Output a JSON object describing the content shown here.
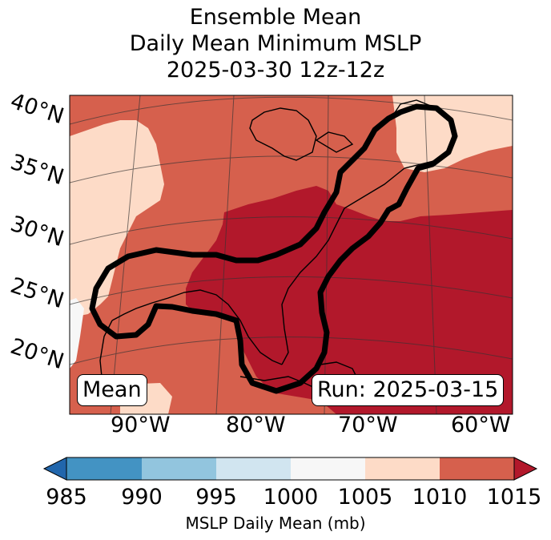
{
  "title": {
    "line1": "Ensemble Mean",
    "line2": "Daily Mean Minimum MSLP",
    "line3": "2025-03-30 12z-12z"
  },
  "map": {
    "lat_labels": [
      "40°N",
      "35°N",
      "30°N",
      "25°N",
      "20°N"
    ],
    "lon_labels": [
      "90°W",
      "80°W",
      "70°W",
      "60°W"
    ],
    "mean_box": "Mean",
    "run_box": "Run: 2025-03-15",
    "field_colors": {
      "c1000_1005": "#f7f7f7",
      "c1005_1010": "#fddbc7",
      "c1010_1015": "#d6604d",
      "c1015_plus": "#b2182b"
    },
    "contour_color": "#000000"
  },
  "colorbar": {
    "label": "MSLP Daily Mean (mb)",
    "ticks": [
      "985",
      "990",
      "995",
      "1000",
      "1005",
      "1010",
      "1015"
    ],
    "colors": [
      "#2166ac",
      "#4393c3",
      "#92c5de",
      "#d1e5f0",
      "#f7f7f7",
      "#fddbc7",
      "#d6604d",
      "#b2182b"
    ]
  }
}
